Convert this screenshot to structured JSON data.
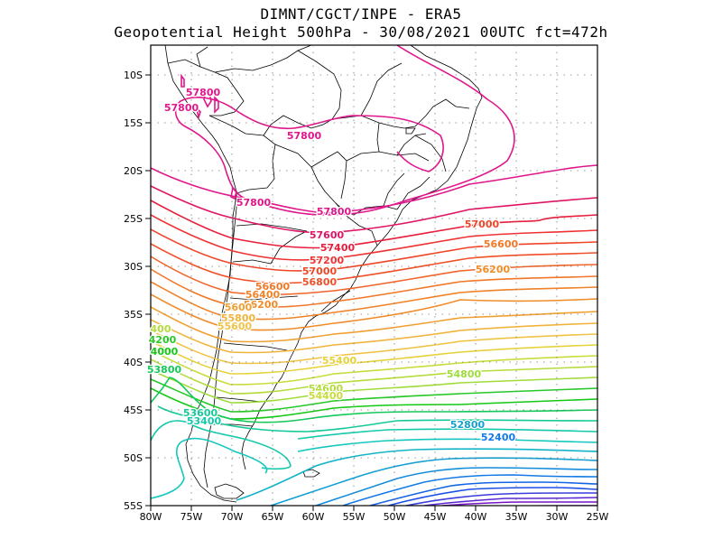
{
  "header": {
    "line1": "DIMNT/CGCT/INPE -  ERA5",
    "line2": "Geopotential Height 500hPa -  30/08/2021 00UTC fct=472h"
  },
  "map": {
    "lon_range": [
      -80,
      -25
    ],
    "lat_range": [
      -55,
      -8
    ],
    "y_ticks": [
      "10S",
      "15S",
      "20S",
      "25S",
      "30S",
      "35S",
      "40S",
      "45S",
      "50S",
      "55S"
    ],
    "x_ticks": [
      "80W",
      "75W",
      "70W",
      "65W",
      "60W",
      "55W",
      "50W",
      "45W",
      "40W",
      "35W",
      "30W",
      "25W"
    ]
  },
  "contours": {
    "labels": [
      {
        "text": "57800",
        "color": "#e0168c"
      },
      {
        "text": "57800",
        "color": "#e0168c"
      },
      {
        "text": "57800",
        "color": "#e0168c"
      },
      {
        "text": "57800",
        "color": "#e0168c"
      },
      {
        "text": "57800",
        "color": "#e0168c"
      },
      {
        "text": "57600",
        "color": "#e01464"
      },
      {
        "text": "57400",
        "color": "#e81e3c"
      },
      {
        "text": "57200",
        "color": "#f03232"
      },
      {
        "text": "57000",
        "color": "#f04628"
      },
      {
        "text": "56800",
        "color": "#f05028"
      },
      {
        "text": "57000",
        "color": "#f04628"
      },
      {
        "text": "56600",
        "color": "#f07828"
      },
      {
        "text": "56200",
        "color": "#f08c28"
      },
      {
        "text": "56600",
        "color": "#f07828"
      },
      {
        "text": "56400",
        "color": "#f08228"
      },
      {
        "text": "56200",
        "color": "#f08c28"
      },
      {
        "text": "5600",
        "color": "#f0a032"
      },
      {
        "text": "55800",
        "color": "#f0b43c"
      },
      {
        "text": "55600",
        "color": "#f0c346"
      },
      {
        "text": "55400",
        "color": "#e6d23c"
      },
      {
        "text": "54800",
        "color": "#a0dc3c"
      },
      {
        "text": "54600",
        "color": "#b4dc3c"
      },
      {
        "text": "54400",
        "color": "#c8dc3c"
      },
      {
        "text": "400",
        "color": "#b4dc3c"
      },
      {
        "text": "4200",
        "color": "#28c828"
      },
      {
        "text": "4000",
        "color": "#14c814"
      },
      {
        "text": "53800",
        "color": "#14c85a"
      },
      {
        "text": "53600",
        "color": "#14c89a"
      },
      {
        "text": "53400",
        "color": "#14c8aa"
      },
      {
        "text": "52800",
        "color": "#14a0d2"
      },
      {
        "text": "52400",
        "color": "#147ae6"
      }
    ]
  }
}
